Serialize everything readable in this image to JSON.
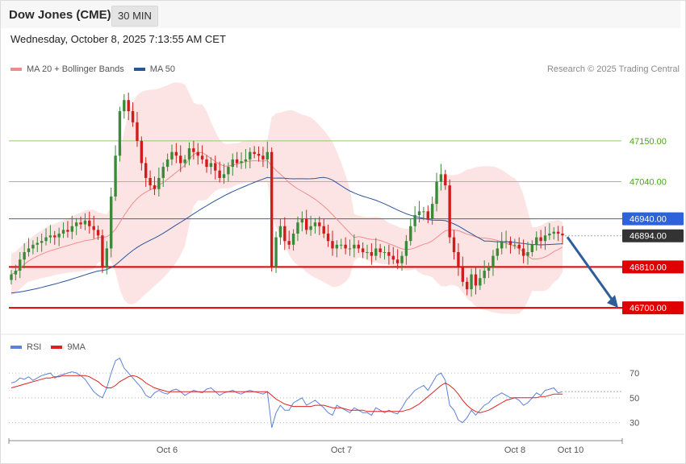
{
  "header": {
    "symbol": "Dow Jones (CME)",
    "timeframe": "30 MIN"
  },
  "datetime": "Wednesday, October 8, 2025 7:13:55 AM CET",
  "credit": "Research © 2025 Trading Central",
  "legend_main": [
    {
      "label": "MA 20 + Bollinger Bands",
      "color": "#f08c8c"
    },
    {
      "label": "MA 50",
      "color": "#2b5597"
    }
  ],
  "legend_rsi": [
    {
      "label": "RSI",
      "color": "#5b82d8"
    },
    {
      "label": "9MA",
      "color": "#e02020"
    }
  ],
  "colors": {
    "up_candle": "#3a8a3a",
    "down_candle": "#d11c1c",
    "bollinger_fill": "#fde1e1",
    "ma20": "#f08c8c",
    "ma50": "#2b5597",
    "resistance": "#90cc6a",
    "resistance_text": "#4aa51c",
    "support": "#e00000",
    "pivot": "#2e62d8",
    "current": "#333333",
    "arrow": "#2e5d9c",
    "rsi": "#5b82d8",
    "rsi_ma": "#e02020"
  },
  "chart_data": [
    {
      "type": "candlestick",
      "title": "Dow Jones (CME)",
      "interval": "30 MIN",
      "x_labels": [
        "Oct 6",
        "Oct 7",
        "Oct 8",
        "Oct 10"
      ],
      "y_range": [
        46635,
        47330
      ],
      "close": [
        46790,
        46800,
        46830,
        46850,
        46860,
        46870,
        46875,
        46880,
        46890,
        46895,
        46890,
        46900,
        46910,
        46905,
        46920,
        46930,
        46925,
        46935,
        46920,
        46910,
        46895,
        46810,
        46860,
        47000,
        47110,
        47230,
        47260,
        47230,
        47200,
        47150,
        47090,
        47050,
        47030,
        47020,
        47050,
        47080,
        47100,
        47120,
        47110,
        47090,
        47100,
        47130,
        47120,
        47110,
        47100,
        47080,
        47090,
        47070,
        47050,
        47060,
        47080,
        47100,
        47090,
        47095,
        47100,
        47120,
        47115,
        47110,
        47100,
        47120,
        46810,
        46890,
        46920,
        46880,
        46870,
        46900,
        46930,
        46940,
        46910,
        46920,
        46930,
        46920,
        46900,
        46880,
        46860,
        46870,
        46870,
        46860,
        46860,
        46870,
        46860,
        46850,
        46850,
        46840,
        46860,
        46850,
        46850,
        46840,
        46830,
        46820,
        46840,
        46880,
        46920,
        46950,
        46960,
        46960,
        46940,
        46980,
        47040,
        47060,
        47030,
        46890,
        46850,
        46810,
        46770,
        46750,
        46790,
        46760,
        46780,
        46800,
        46810,
        46840,
        46860,
        46880,
        46880,
        46870,
        46870,
        46860,
        46840,
        46850,
        46870,
        46890,
        46880,
        46895,
        46900,
        46905,
        46900,
        46895
      ],
      "open": [
        46775,
        46790,
        46800,
        46830,
        46850,
        46860,
        46870,
        46875,
        46880,
        46890,
        46895,
        46890,
        46900,
        46910,
        46905,
        46920,
        46930,
        46925,
        46935,
        46920,
        46910,
        46895,
        46810,
        46860,
        47000,
        47110,
        47230,
        47260,
        47230,
        47200,
        47150,
        47090,
        47050,
        47030,
        47020,
        47050,
        47080,
        47100,
        47120,
        47110,
        47090,
        47100,
        47130,
        47120,
        47110,
        47100,
        47080,
        47090,
        47070,
        47050,
        47060,
        47080,
        47100,
        47090,
        47095,
        47100,
        47120,
        47115,
        47110,
        47100,
        47120,
        46810,
        46890,
        46920,
        46880,
        46870,
        46900,
        46930,
        46940,
        46910,
        46920,
        46930,
        46920,
        46900,
        46880,
        46860,
        46870,
        46870,
        46860,
        46860,
        46870,
        46860,
        46850,
        46850,
        46840,
        46860,
        46850,
        46850,
        46840,
        46830,
        46820,
        46840,
        46880,
        46920,
        46950,
        46960,
        46960,
        46940,
        46980,
        47040,
        47060,
        47030,
        46890,
        46850,
        46810,
        46770,
        46750,
        46790,
        46760,
        46780,
        46800,
        46810,
        46840,
        46860,
        46880,
        46880,
        46870,
        46870,
        46860,
        46840,
        46850,
        46870,
        46890,
        46880,
        46895,
        46900,
        46905,
        46900
      ],
      "ma20_band": {
        "ma_start": 46790,
        "ma_end": 46870
      },
      "ma50": {
        "start": 46740,
        "end": 46893
      },
      "levels": [
        {
          "value": "47150.00",
          "kind": "resistance"
        },
        {
          "value": "47040.00",
          "kind": "resistance"
        },
        {
          "value": "46940.00",
          "kind": "pivot"
        },
        {
          "value": "46894.00",
          "kind": "current"
        },
        {
          "value": "46810.00",
          "kind": "support"
        },
        {
          "value": "46700.00",
          "kind": "support"
        }
      ]
    },
    {
      "type": "line",
      "name": "RSI",
      "y_range": [
        20,
        85
      ],
      "y_ticks": [
        "70",
        "50",
        "30"
      ],
      "rsi": [
        62,
        63,
        66,
        65,
        67,
        64,
        66,
        68,
        69,
        70,
        66,
        68,
        69,
        70,
        71,
        70,
        68,
        65,
        60,
        55,
        52,
        50,
        58,
        70,
        80,
        82,
        74,
        70,
        66,
        62,
        58,
        52,
        50,
        54,
        56,
        54,
        53,
        56,
        57,
        55,
        52,
        54,
        56,
        55,
        54,
        57,
        58,
        55,
        52,
        54,
        55,
        56,
        54,
        53,
        55,
        56,
        55,
        54,
        53,
        55,
        26,
        38,
        44,
        40,
        40,
        46,
        48,
        50,
        44,
        46,
        48,
        45,
        42,
        38,
        36,
        44,
        42,
        40,
        38,
        42,
        40,
        38,
        38,
        36,
        42,
        40,
        38,
        40,
        38,
        37,
        42,
        48,
        52,
        56,
        58,
        60,
        56,
        62,
        68,
        70,
        64,
        44,
        40,
        32,
        30,
        34,
        40,
        36,
        40,
        44,
        46,
        50,
        52,
        54,
        52,
        50,
        50,
        48,
        44,
        46,
        50,
        54,
        52,
        56,
        57,
        58,
        54,
        55
      ],
      "rsi_ma": [
        58,
        59,
        60,
        61,
        62,
        63,
        64,
        65,
        66,
        66,
        67,
        67,
        68,
        68,
        68,
        68,
        68,
        68,
        67,
        65,
        63,
        60,
        58,
        58,
        60,
        63,
        65,
        67,
        68,
        67,
        65,
        62,
        60,
        58,
        57,
        56,
        55,
        55,
        55,
        55,
        55,
        55,
        55,
        55,
        55,
        55,
        55,
        55,
        55,
        55,
        55,
        55,
        55,
        55,
        55,
        55,
        55,
        55,
        55,
        55,
        52,
        49,
        47,
        45,
        44,
        43,
        43,
        43,
        43,
        43,
        44,
        44,
        44,
        43,
        42,
        42,
        42,
        41,
        40,
        40,
        40,
        40,
        39,
        39,
        39,
        39,
        39,
        39,
        39,
        39,
        39,
        40,
        41,
        43,
        45,
        48,
        51,
        54,
        57,
        60,
        62,
        60,
        57,
        53,
        48,
        44,
        41,
        39,
        38,
        39,
        40,
        42,
        44,
        46,
        48,
        49,
        50,
        50,
        50,
        50,
        50,
        50,
        51,
        51,
        52,
        53,
        53,
        53
      ]
    }
  ]
}
